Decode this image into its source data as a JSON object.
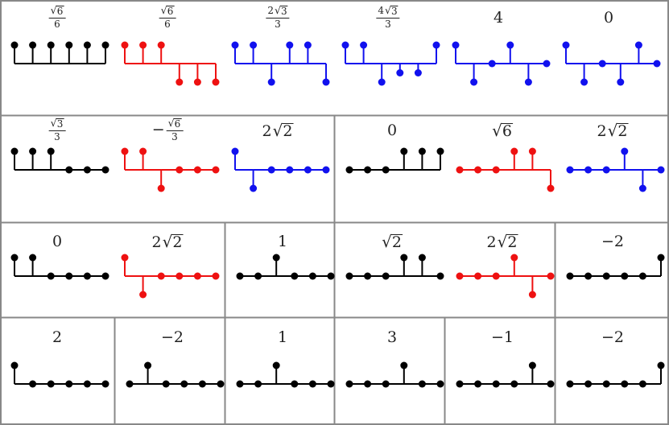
{
  "colors": {
    "black": "#000000",
    "red": "#ee1111",
    "blue": "#1111ee",
    "grid": "#888888"
  },
  "rows": [
    {
      "cells": [
        {
          "glyphs": [
            {
              "label": {
                "neg": false,
                "coef": "",
                "rad": "6",
                "den": "6"
              },
              "color": "black",
              "values": [
                1,
                1,
                1,
                1,
                1,
                1
              ]
            },
            {
              "label": {
                "neg": false,
                "coef": "",
                "rad": "6",
                "den": "6"
              },
              "color": "red",
              "values": [
                1,
                1,
                1,
                -1,
                -1,
                -1
              ]
            },
            {
              "label": {
                "neg": false,
                "coef": "2",
                "rad": "3",
                "den": "3"
              },
              "color": "blue",
              "values": [
                1,
                1,
                -1,
                1,
                1,
                -1
              ]
            },
            {
              "label": {
                "neg": false,
                "coef": "4",
                "rad": "3",
                "den": "3"
              },
              "color": "blue",
              "values": [
                1,
                1,
                -1,
                -0.5,
                -0.5,
                1
              ]
            },
            {
              "label": {
                "text": "4"
              },
              "color": "blue",
              "values": [
                1,
                -1,
                0,
                1,
                -1,
                0
              ]
            },
            {
              "label": {
                "text": "0"
              },
              "color": "blue",
              "values": [
                1,
                -1,
                0,
                -1,
                1,
                0
              ]
            }
          ]
        }
      ]
    },
    {
      "cells": [
        {
          "glyphs": [
            {
              "label": {
                "neg": false,
                "coef": "",
                "rad": "3",
                "den": "3"
              },
              "color": "black",
              "values": [
                1,
                1,
                1,
                0,
                0,
                0
              ]
            },
            {
              "label": {
                "neg": true,
                "coef": "",
                "rad": "6",
                "den": "3"
              },
              "color": "red",
              "values": [
                1,
                1,
                -1,
                0,
                0,
                0
              ]
            },
            {
              "label": {
                "coef": "2",
                "rad": "2"
              },
              "color": "blue",
              "values": [
                1,
                -1,
                0,
                0,
                0,
                0
              ]
            }
          ]
        },
        {
          "glyphs": [
            {
              "label": {
                "text": "0"
              },
              "color": "black",
              "values": [
                0,
                0,
                0,
                1,
                1,
                1
              ]
            },
            {
              "label": {
                "coef": "",
                "rad": "6"
              },
              "color": "red",
              "values": [
                0,
                0,
                0,
                1,
                1,
                -1
              ]
            },
            {
              "label": {
                "coef": "2",
                "rad": "2"
              },
              "color": "blue",
              "values": [
                0,
                0,
                0,
                1,
                -1,
                0
              ]
            }
          ]
        }
      ]
    },
    {
      "cells": [
        {
          "glyphs": [
            {
              "label": {
                "text": "0"
              },
              "color": "black",
              "values": [
                1,
                1,
                0,
                0,
                0,
                0
              ]
            },
            {
              "label": {
                "coef": "2",
                "rad": "2"
              },
              "color": "red",
              "values": [
                1,
                -1,
                0,
                0,
                0,
                0
              ]
            }
          ]
        },
        {
          "glyphs": [
            {
              "label": {
                "text": "1"
              },
              "color": "black",
              "values": [
                0,
                0,
                1,
                0,
                0,
                0
              ]
            }
          ]
        },
        {
          "glyphs": [
            {
              "label": {
                "coef": "",
                "rad": "2"
              },
              "color": "black",
              "values": [
                0,
                0,
                0,
                1,
                1,
                0
              ]
            },
            {
              "label": {
                "coef": "2",
                "rad": "2"
              },
              "color": "red",
              "values": [
                0,
                0,
                0,
                1,
                -1,
                0
              ]
            }
          ]
        },
        {
          "glyphs": [
            {
              "label": {
                "text": "−2"
              },
              "color": "black",
              "values": [
                0,
                0,
                0,
                0,
                0,
                1
              ]
            }
          ]
        }
      ]
    },
    {
      "cells": [
        {
          "glyphs": [
            {
              "label": {
                "text": "2"
              },
              "color": "black",
              "values": [
                1,
                0,
                0,
                0,
                0,
                0
              ]
            }
          ]
        },
        {
          "glyphs": [
            {
              "label": {
                "text": "−2"
              },
              "color": "black",
              "values": [
                0,
                1,
                0,
                0,
                0,
                0
              ]
            }
          ]
        },
        {
          "glyphs": [
            {
              "label": {
                "text": "1"
              },
              "color": "black",
              "values": [
                0,
                0,
                1,
                0,
                0,
                0
              ]
            }
          ]
        },
        {
          "glyphs": [
            {
              "label": {
                "text": "3"
              },
              "color": "black",
              "values": [
                0,
                0,
                0,
                1,
                0,
                0
              ]
            }
          ]
        },
        {
          "glyphs": [
            {
              "label": {
                "text": "−1"
              },
              "color": "black",
              "values": [
                0,
                0,
                0,
                0,
                1,
                0
              ]
            }
          ]
        },
        {
          "glyphs": [
            {
              "label": {
                "text": "−2"
              },
              "color": "black",
              "values": [
                0,
                0,
                0,
                0,
                0,
                1
              ]
            }
          ]
        }
      ]
    }
  ]
}
